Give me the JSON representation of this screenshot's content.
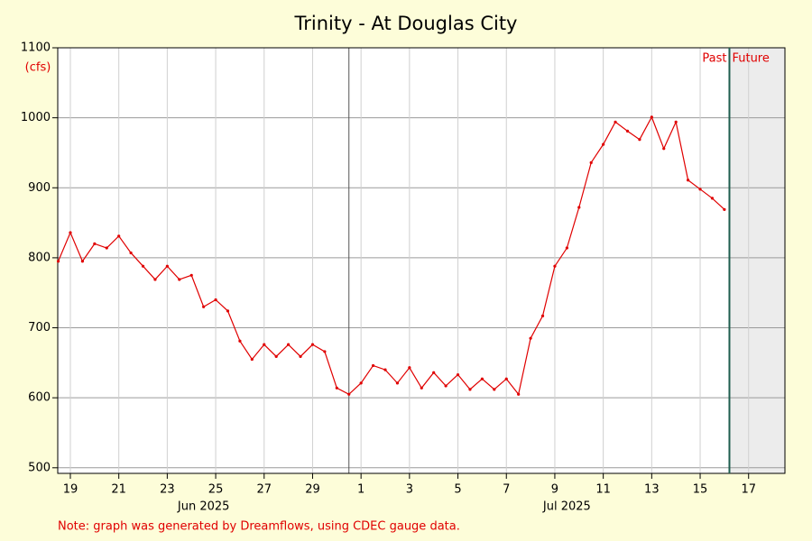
{
  "chart_data": {
    "type": "line",
    "title": "Trinity - At Douglas City",
    "y_label": "(cfs)",
    "note": "Note: graph was generated by Dreamflows, using CDEC gauge data.",
    "past_label": "Past",
    "future_label": "Future",
    "now": "2025-07-16T17:00",
    "month_divider": "2025-07-01T00:00",
    "month_labels": [
      {
        "value": "2025-06-25T00:00",
        "label": "Jun 2025"
      },
      {
        "value": "2025-07-10T00:00",
        "label": "Jul 2025"
      }
    ],
    "xlim": [
      "2025-06-18T23:30",
      "2025-07-19T00:00"
    ],
    "ylim": [
      492,
      1100
    ],
    "yticks": [
      500,
      600,
      700,
      800,
      900,
      1000,
      1100
    ],
    "xticks": [
      {
        "value": "2025-06-19T12:00",
        "label": "19"
      },
      {
        "value": "2025-06-21T12:00",
        "label": "21"
      },
      {
        "value": "2025-06-23T12:00",
        "label": "23"
      },
      {
        "value": "2025-06-25T12:00",
        "label": "25"
      },
      {
        "value": "2025-06-27T12:00",
        "label": "27"
      },
      {
        "value": "2025-06-29T12:00",
        "label": "29"
      },
      {
        "value": "2025-07-01T12:00",
        "label": "1"
      },
      {
        "value": "2025-07-03T12:00",
        "label": "3"
      },
      {
        "value": "2025-07-05T12:00",
        "label": "5"
      },
      {
        "value": "2025-07-07T12:00",
        "label": "7"
      },
      {
        "value": "2025-07-09T12:00",
        "label": "9"
      },
      {
        "value": "2025-07-11T12:00",
        "label": "11"
      },
      {
        "value": "2025-07-13T12:00",
        "label": "13"
      },
      {
        "value": "2025-07-15T12:00",
        "label": "15"
      },
      {
        "value": "2025-07-17T12:00",
        "label": "17"
      }
    ],
    "grid": true,
    "x": [
      "2025-06-19T00:00",
      "2025-06-19T12:00",
      "2025-06-20T00:00",
      "2025-06-20T12:00",
      "2025-06-21T00:00",
      "2025-06-21T12:00",
      "2025-06-22T00:00",
      "2025-06-22T12:00",
      "2025-06-23T00:00",
      "2025-06-23T12:00",
      "2025-06-24T00:00",
      "2025-06-24T12:00",
      "2025-06-25T00:00",
      "2025-06-25T12:00",
      "2025-06-26T00:00",
      "2025-06-26T12:00",
      "2025-06-27T00:00",
      "2025-06-27T12:00",
      "2025-06-28T00:00",
      "2025-06-28T12:00",
      "2025-06-29T00:00",
      "2025-06-29T12:00",
      "2025-06-30T00:00",
      "2025-06-30T12:00",
      "2025-07-01T00:00",
      "2025-07-01T12:00",
      "2025-07-02T00:00",
      "2025-07-02T12:00",
      "2025-07-03T00:00",
      "2025-07-03T12:00",
      "2025-07-04T00:00",
      "2025-07-04T12:00",
      "2025-07-05T00:00",
      "2025-07-05T12:00",
      "2025-07-06T00:00",
      "2025-07-06T12:00",
      "2025-07-07T00:00",
      "2025-07-07T12:00",
      "2025-07-08T00:00",
      "2025-07-08T12:00",
      "2025-07-09T00:00",
      "2025-07-09T12:00",
      "2025-07-10T00:00",
      "2025-07-10T12:00",
      "2025-07-11T00:00",
      "2025-07-11T12:00",
      "2025-07-12T00:00",
      "2025-07-12T12:00",
      "2025-07-13T00:00",
      "2025-07-13T12:00",
      "2025-07-14T00:00",
      "2025-07-14T12:00",
      "2025-07-15T00:00",
      "2025-07-15T12:00",
      "2025-07-16T00:00",
      "2025-07-16T12:00"
    ],
    "series": [
      {
        "color": "#e00000",
        "values": [
          795,
          836,
          795,
          820,
          814,
          831,
          807,
          788,
          769,
          788,
          769,
          775,
          730,
          740,
          724,
          681,
          655,
          676,
          659,
          676,
          659,
          676,
          666,
          614,
          605,
          621,
          646,
          640,
          621,
          643,
          614,
          636,
          617,
          633,
          612,
          627,
          612,
          627,
          605,
          685,
          717,
          788,
          814,
          872,
          936,
          962,
          994,
          981,
          969,
          1001,
          956,
          994,
          911,
          898,
          885,
          869
        ]
      }
    ]
  }
}
